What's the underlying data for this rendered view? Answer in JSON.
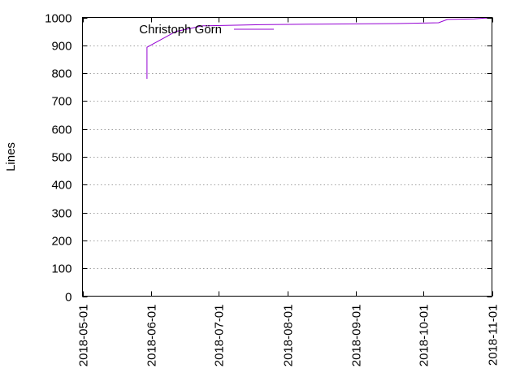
{
  "chart_data": {
    "type": "line",
    "title": "",
    "xlabel": "",
    "ylabel": "Lines",
    "x_axis_type": "date",
    "xlim": [
      "2018-05-01",
      "2018-11-01"
    ],
    "ylim": [
      0,
      1000
    ],
    "grid": true,
    "legend_position": "top-left",
    "x_ticks": [
      "2018-05-01",
      "2018-06-01",
      "2018-07-01",
      "2018-08-01",
      "2018-09-01",
      "2018-10-01",
      "2018-11-01"
    ],
    "y_ticks": [
      "0",
      "100",
      "200",
      "300",
      "400",
      "500",
      "600",
      "700",
      "800",
      "900",
      "1000"
    ],
    "series": [
      {
        "name": "Christoph Görn",
        "color": "#9400d3",
        "points": [
          {
            "x": "2018-05-30",
            "y": 780
          },
          {
            "x": "2018-05-30",
            "y": 893
          },
          {
            "x": "2018-06-12",
            "y": 950
          },
          {
            "x": "2018-06-24",
            "y": 970
          },
          {
            "x": "2018-07-20",
            "y": 974
          },
          {
            "x": "2018-08-14",
            "y": 976
          },
          {
            "x": "2018-09-19",
            "y": 978
          },
          {
            "x": "2018-10-08",
            "y": 981
          },
          {
            "x": "2018-10-12",
            "y": 993
          },
          {
            "x": "2018-10-24",
            "y": 995
          },
          {
            "x": "2018-10-29",
            "y": 998
          },
          {
            "x": "2018-11-01",
            "y": 998
          }
        ]
      }
    ]
  }
}
